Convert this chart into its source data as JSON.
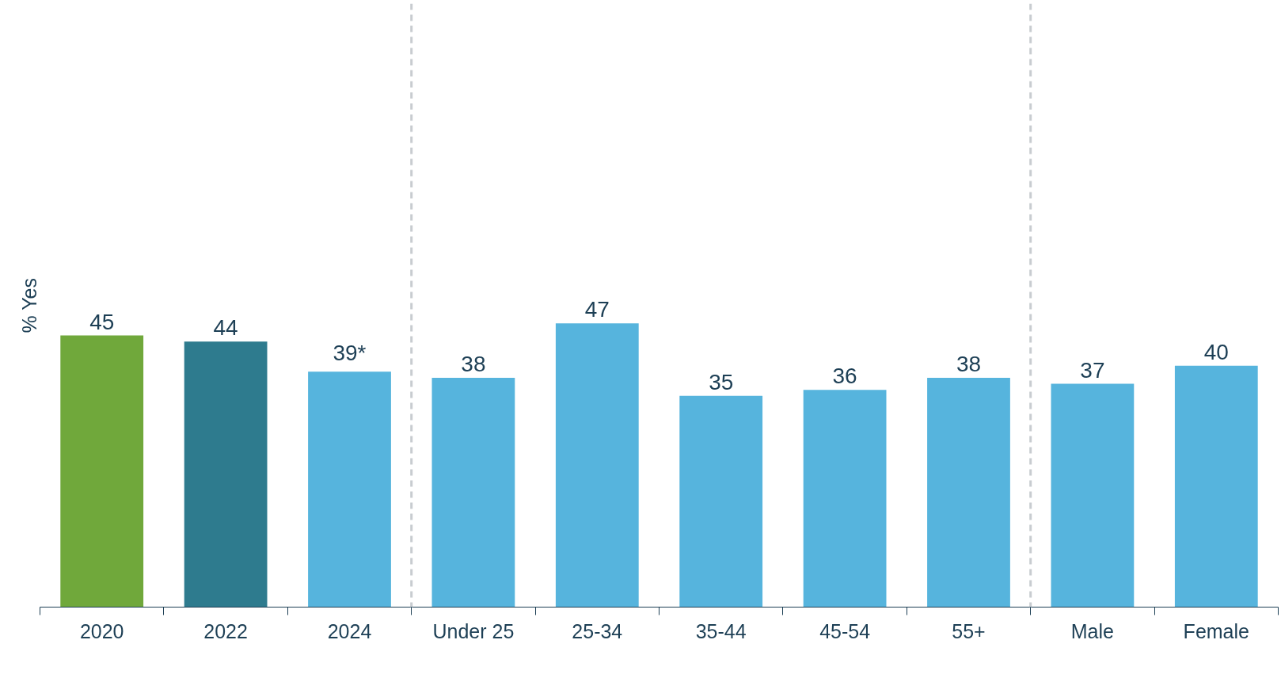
{
  "chart_data": {
    "type": "bar",
    "ylabel": "% Yes",
    "categories": [
      "2020",
      "2022",
      "2024",
      "Under 25",
      "25-34",
      "35-44",
      "45-54",
      "55+",
      "Male",
      "Female"
    ],
    "values": [
      45,
      44,
      39,
      38,
      47,
      35,
      36,
      38,
      37,
      40
    ],
    "colors": [
      "#70a83b",
      "#2e7b8e",
      "#56b4dd",
      "#56b4dd",
      "#56b4dd",
      "#56b4dd",
      "#56b4dd",
      "#56b4dd",
      "#56b4dd",
      "#56b4dd"
    ],
    "value_labels": [
      "45",
      "44",
      "39*",
      "38",
      "47",
      "35",
      "36",
      "38",
      "37",
      "40"
    ],
    "ylim": [
      0,
      100
    ]
  }
}
